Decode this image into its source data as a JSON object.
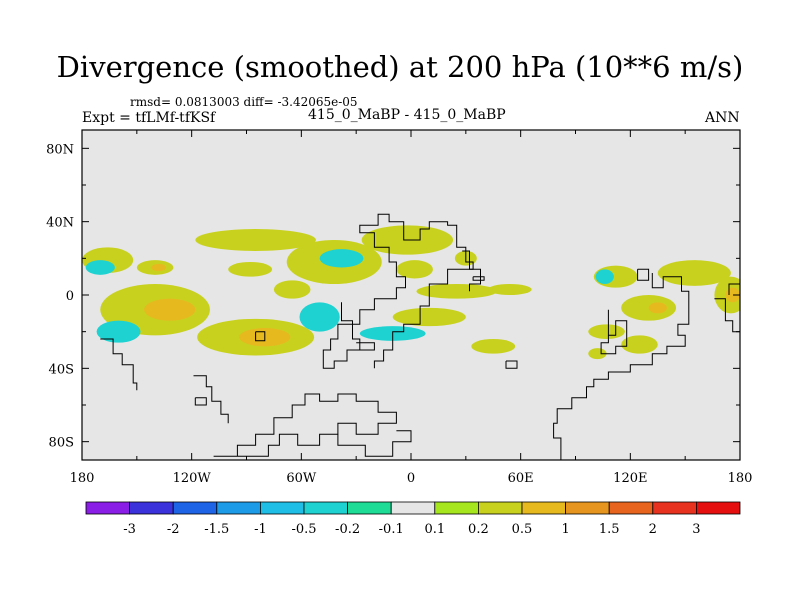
{
  "title": "Divergence (smoothed) at 200 hPa (10**6 m/s)",
  "stats": "rmsd= 0.0813003 diff= -3.42065e-05",
  "expt": "Expt = tfLMf-tfKSf",
  "cases": "415_0_MaBP - 415_0_MaBP",
  "season": "ANN",
  "chart_data": {
    "type": "contour-map",
    "title": "Divergence (smoothed) at 200 hPa (10**6 m/s)",
    "projection": "cylindrical-equidistant",
    "xlim": [
      -180,
      180
    ],
    "ylim": [
      -90,
      90
    ],
    "x_ticks": [
      {
        "value": -180,
        "label": "180"
      },
      {
        "value": -120,
        "label": "120W"
      },
      {
        "value": -60,
        "label": "60W"
      },
      {
        "value": 0,
        "label": "0"
      },
      {
        "value": 60,
        "label": "60E"
      },
      {
        "value": 120,
        "label": "120E"
      },
      {
        "value": 180,
        "label": "180"
      }
    ],
    "y_ticks": [
      {
        "value": 80,
        "label": "80N"
      },
      {
        "value": 40,
        "label": "40N"
      },
      {
        "value": 0,
        "label": "0"
      },
      {
        "value": -40,
        "label": "40S"
      },
      {
        "value": -80,
        "label": "80S"
      }
    ],
    "background_color": "#e6e6e6",
    "contour_levels": [
      "-3",
      "-2",
      "-1.5",
      "-1",
      "-0.5",
      "-0.2",
      "-0.1",
      "0.1",
      "0.2",
      "0.5",
      "1",
      "1.5",
      "2",
      "3"
    ],
    "colorbar_colors": [
      "#8a1ee6",
      "#3c32dc",
      "#1e64e6",
      "#1e9be6",
      "#1ebee6",
      "#1ed2d2",
      "#1edc96",
      "#e6e6e6",
      "#a5e61e",
      "#c8d21e",
      "#e6b91e",
      "#e6961e",
      "#e6641e",
      "#e6321e",
      "#e60f0f"
    ],
    "filled_regions": [
      {
        "lon": -166,
        "lat": 19,
        "rx": 14,
        "ry": 7,
        "level": "0.2"
      },
      {
        "lon": -170,
        "lat": 15,
        "rx": 8,
        "ry": 4,
        "level": "-0.2"
      },
      {
        "lon": -140,
        "lat": 15,
        "rx": 10,
        "ry": 4,
        "level": "0.2"
      },
      {
        "lon": -138,
        "lat": 15,
        "rx": 4,
        "ry": 2,
        "level": "0.5"
      },
      {
        "lon": -85,
        "lat": 30,
        "rx": 33,
        "ry": 6,
        "level": "0.2"
      },
      {
        "lon": -88,
        "lat": 14,
        "rx": 12,
        "ry": 4,
        "level": "0.2"
      },
      {
        "lon": -42,
        "lat": 18,
        "rx": 26,
        "ry": 12,
        "level": "0.2"
      },
      {
        "lon": -38,
        "lat": 20,
        "rx": 12,
        "ry": 5,
        "level": "-0.2"
      },
      {
        "lon": -65,
        "lat": 3,
        "rx": 10,
        "ry": 5,
        "level": "0.2"
      },
      {
        "lon": -2,
        "lat": 30,
        "rx": 25,
        "ry": 8,
        "level": "0.2"
      },
      {
        "lon": 2,
        "lat": 14,
        "rx": 10,
        "ry": 5,
        "level": "0.2"
      },
      {
        "lon": 30,
        "lat": 20,
        "rx": 6,
        "ry": 4,
        "level": "0.2"
      },
      {
        "lon": 25,
        "lat": 2,
        "rx": 22,
        "ry": 4,
        "level": "0.2"
      },
      {
        "lon": 54,
        "lat": 3,
        "rx": 12,
        "ry": 3,
        "level": "0.2"
      },
      {
        "lon": -140,
        "lat": -8,
        "rx": 30,
        "ry": 14,
        "level": "0.2"
      },
      {
        "lon": -160,
        "lat": -20,
        "rx": 12,
        "ry": 6,
        "level": "-0.2"
      },
      {
        "lon": -132,
        "lat": -8,
        "rx": 14,
        "ry": 6,
        "level": "0.5"
      },
      {
        "lon": -85,
        "lat": -23,
        "rx": 32,
        "ry": 10,
        "level": "0.2"
      },
      {
        "lon": -80,
        "lat": -23,
        "rx": 14,
        "ry": 5,
        "level": "0.5"
      },
      {
        "lon": -50,
        "lat": -12,
        "rx": 11,
        "ry": 8,
        "level": "-0.2"
      },
      {
        "lon": -10,
        "lat": -21,
        "rx": 18,
        "ry": 4,
        "level": "-0.2"
      },
      {
        "lon": 10,
        "lat": -12,
        "rx": 20,
        "ry": 5,
        "level": "0.2"
      },
      {
        "lon": 45,
        "lat": -28,
        "rx": 12,
        "ry": 4,
        "level": "0.2"
      },
      {
        "lon": 112,
        "lat": 10,
        "rx": 12,
        "ry": 6,
        "level": "0.2"
      },
      {
        "lon": 106,
        "lat": 10,
        "rx": 5,
        "ry": 4,
        "level": "-0.2"
      },
      {
        "lon": 155,
        "lat": 12,
        "rx": 20,
        "ry": 7,
        "level": "0.2"
      },
      {
        "lon": 130,
        "lat": -7,
        "rx": 15,
        "ry": 7,
        "level": "0.2"
      },
      {
        "lon": 135,
        "lat": -7,
        "rx": 5,
        "ry": 3,
        "level": "0.5"
      },
      {
        "lon": 175,
        "lat": 0,
        "rx": 9,
        "ry": 10,
        "level": "0.2"
      },
      {
        "lon": 176,
        "lat": 0,
        "rx": 4,
        "ry": 4,
        "level": "0.5"
      },
      {
        "lon": 107,
        "lat": -20,
        "rx": 10,
        "ry": 4,
        "level": "0.2"
      },
      {
        "lon": 125,
        "lat": -27,
        "rx": 10,
        "ry": 5,
        "level": "0.2"
      },
      {
        "lon": 102,
        "lat": -32,
        "rx": 5,
        "ry": 3,
        "level": "0.2"
      }
    ],
    "coastlines": [
      [
        [
          -170,
          -24
        ],
        [
          -163,
          -24
        ],
        [
          -163,
          -32
        ],
        [
          -158,
          -32
        ],
        [
          -158,
          -38
        ],
        [
          -152,
          -38
        ],
        [
          -152,
          -48
        ],
        [
          -150,
          -48
        ],
        [
          -150,
          -52
        ]
      ],
      [
        [
          -119,
          -44
        ],
        [
          -112,
          -44
        ],
        [
          -112,
          -50
        ],
        [
          -109,
          -50
        ],
        [
          -109,
          -58
        ],
        [
          -104,
          -58
        ],
        [
          -104,
          -65
        ],
        [
          -100,
          -65
        ],
        [
          -100,
          -70
        ]
      ],
      [
        [
          -118,
          -56
        ],
        [
          -112,
          -56
        ],
        [
          -112,
          -60
        ],
        [
          -118,
          -60
        ],
        [
          -118,
          -56
        ]
      ],
      [
        [
          -85,
          -20
        ],
        [
          -80,
          -20
        ],
        [
          -80,
          -25
        ],
        [
          -85,
          -25
        ],
        [
          -85,
          -20
        ]
      ],
      [
        [
          -108,
          -88
        ],
        [
          -95,
          -88
        ],
        [
          -95,
          -82
        ],
        [
          -85,
          -82
        ],
        [
          -85,
          -76
        ],
        [
          -75,
          -76
        ],
        [
          -75,
          -67
        ],
        [
          -65,
          -67
        ],
        [
          -65,
          -60
        ],
        [
          -58,
          -60
        ],
        [
          -58,
          -54
        ],
        [
          -50,
          -54
        ],
        [
          -50,
          -58
        ],
        [
          -40,
          -58
        ],
        [
          -40,
          -54
        ],
        [
          -30,
          -54
        ],
        [
          -30,
          -58
        ],
        [
          -18,
          -58
        ],
        [
          -18,
          -64
        ],
        [
          -8,
          -64
        ],
        [
          -8,
          -70
        ],
        [
          -18,
          -70
        ],
        [
          -18,
          -76
        ],
        [
          -30,
          -76
        ],
        [
          -30,
          -70
        ],
        [
          -40,
          -70
        ],
        [
          -40,
          -76
        ],
        [
          -50,
          -76
        ],
        [
          -50,
          -82
        ],
        [
          -62,
          -82
        ],
        [
          -62,
          -76
        ],
        [
          -72,
          -76
        ],
        [
          -72,
          -82
        ],
        [
          -78,
          -82
        ],
        [
          -78,
          -88
        ],
        [
          -108,
          -88
        ]
      ],
      [
        [
          -8,
          -74
        ],
        [
          0,
          -74
        ],
        [
          0,
          -80
        ],
        [
          -10,
          -80
        ],
        [
          -10,
          -88
        ],
        [
          -25,
          -88
        ],
        [
          -25,
          -82
        ],
        [
          -40,
          -82
        ],
        [
          -40,
          -76
        ]
      ],
      [
        [
          -38,
          -4
        ],
        [
          -38,
          -14
        ],
        [
          -32,
          -14
        ],
        [
          -32,
          -24
        ],
        [
          -28,
          -24
        ],
        [
          -28,
          -30
        ],
        [
          -35,
          -30
        ],
        [
          -35,
          -36
        ],
        [
          -42,
          -36
        ],
        [
          -42,
          -40
        ],
        [
          -48,
          -40
        ],
        [
          -48,
          -30
        ],
        [
          -44,
          -30
        ],
        [
          -44,
          -24
        ],
        [
          -40,
          -24
        ],
        [
          -40,
          -16
        ],
        [
          -28,
          -16
        ],
        [
          -28,
          -8
        ],
        [
          -20,
          -8
        ],
        [
          -20,
          -2
        ],
        [
          -8,
          -2
        ],
        [
          -8,
          4
        ],
        [
          -3,
          4
        ],
        [
          -3,
          10
        ],
        [
          -8,
          10
        ],
        [
          -8,
          18
        ],
        [
          -12,
          18
        ],
        [
          -12,
          26
        ],
        [
          -20,
          26
        ],
        [
          -20,
          34
        ],
        [
          -28,
          34
        ],
        [
          -28,
          38
        ],
        [
          -18,
          38
        ],
        [
          -18,
          44
        ],
        [
          -12,
          44
        ],
        [
          -12,
          40
        ],
        [
          -4,
          40
        ],
        [
          -4,
          30
        ],
        [
          5,
          30
        ],
        [
          5,
          36
        ],
        [
          10,
          36
        ],
        [
          10,
          40
        ],
        [
          20,
          40
        ],
        [
          20,
          38
        ],
        [
          25,
          38
        ],
        [
          25,
          26
        ],
        [
          30,
          26
        ],
        [
          30,
          18
        ],
        [
          34,
          18
        ],
        [
          34,
          14
        ],
        [
          20,
          14
        ],
        [
          20,
          6
        ],
        [
          10,
          6
        ],
        [
          10,
          -6
        ],
        [
          5,
          -6
        ],
        [
          5,
          -16
        ],
        [
          -4,
          -16
        ],
        [
          -4,
          -20
        ],
        [
          -10,
          -20
        ],
        [
          -10,
          -30
        ],
        [
          -15,
          -30
        ],
        [
          -15,
          -36
        ],
        [
          -20,
          -36
        ],
        [
          -20,
          -40
        ]
      ],
      [
        [
          28,
          24
        ],
        [
          32,
          24
        ],
        [
          32,
          14
        ],
        [
          38,
          14
        ],
        [
          38,
          6
        ],
        [
          32,
          6
        ],
        [
          32,
          2
        ]
      ],
      [
        [
          34,
          10
        ],
        [
          40,
          10
        ],
        [
          40,
          8
        ],
        [
          34,
          8
        ],
        [
          34,
          10
        ]
      ],
      [
        [
          -30,
          -26
        ],
        [
          -20,
          -26
        ],
        [
          -20,
          -30
        ],
        [
          -30,
          -30
        ]
      ],
      [
        [
          52,
          -36
        ],
        [
          58,
          -36
        ],
        [
          58,
          -40
        ],
        [
          52,
          -40
        ],
        [
          52,
          -36
        ]
      ],
      [
        [
          82,
          -90
        ],
        [
          82,
          -78
        ],
        [
          78,
          -78
        ],
        [
          78,
          -70
        ],
        [
          80,
          -70
        ],
        [
          80,
          -62
        ],
        [
          88,
          -62
        ],
        [
          88,
          -56
        ],
        [
          96,
          -56
        ],
        [
          96,
          -50
        ],
        [
          100,
          -50
        ],
        [
          100,
          -46
        ],
        [
          108,
          -46
        ],
        [
          108,
          -42
        ],
        [
          120,
          -42
        ],
        [
          120,
          -38
        ],
        [
          132,
          -38
        ],
        [
          132,
          -32
        ],
        [
          140,
          -32
        ],
        [
          140,
          -28
        ],
        [
          150,
          -28
        ],
        [
          150,
          -22
        ],
        [
          146,
          -22
        ],
        [
          146,
          -16
        ],
        [
          152,
          -16
        ],
        [
          152,
          2
        ],
        [
          148,
          2
        ],
        [
          148,
          10
        ],
        [
          138,
          10
        ],
        [
          138,
          4
        ],
        [
          132,
          4
        ],
        [
          132,
          12
        ]
      ],
      [
        [
          108,
          -8
        ],
        [
          108,
          -22
        ],
        [
          112,
          -22
        ],
        [
          112,
          -14
        ],
        [
          118,
          -14
        ],
        [
          118,
          -28
        ],
        [
          112,
          -28
        ],
        [
          112,
          -32
        ],
        [
          104,
          -32
        ],
        [
          104,
          -26
        ],
        [
          108,
          -26
        ],
        [
          108,
          -22
        ]
      ],
      [
        [
          124,
          14
        ],
        [
          130,
          14
        ],
        [
          130,
          8
        ],
        [
          124,
          8
        ],
        [
          124,
          14
        ]
      ],
      [
        [
          166,
          -2
        ],
        [
          172,
          -2
        ],
        [
          172,
          -14
        ],
        [
          176,
          -14
        ],
        [
          176,
          -20
        ],
        [
          180,
          -20
        ]
      ],
      [
        [
          174,
          0
        ],
        [
          174,
          6
        ],
        [
          180,
          6
        ]
      ]
    ]
  }
}
